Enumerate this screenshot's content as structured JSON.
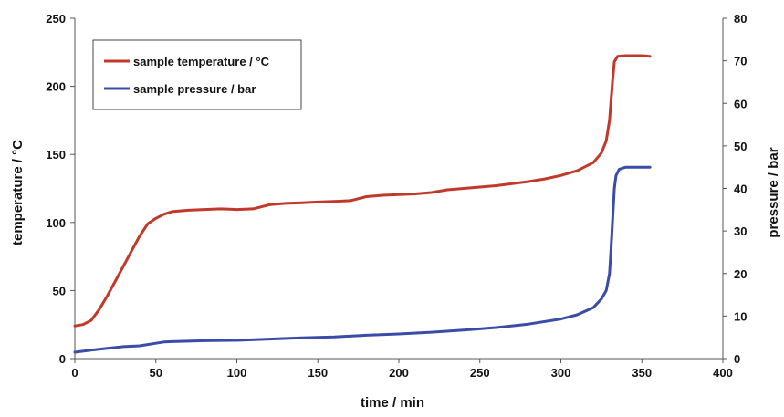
{
  "chart_data": {
    "type": "line",
    "title": "",
    "xlabel": "time / min",
    "ylabel": "temperature / °C",
    "y2label": "pressure / bar",
    "xlim": [
      0,
      400
    ],
    "ylim": [
      0,
      250
    ],
    "y2lim": [
      0,
      80
    ],
    "x_ticks": [
      "0",
      "50",
      "100",
      "150",
      "200",
      "250",
      "300",
      "350",
      "400"
    ],
    "y_ticks": [
      "0",
      "50",
      "100",
      "150",
      "200",
      "250"
    ],
    "y2_ticks": [
      "0",
      "10",
      "20",
      "30",
      "40",
      "50",
      "60",
      "70",
      "80"
    ],
    "grid": false,
    "legend_position": "top-left",
    "series": [
      {
        "name": "sample temperature / °C",
        "axis": "left",
        "color": "#c0392b",
        "points": [
          [
            0,
            24
          ],
          [
            5,
            25
          ],
          [
            10,
            28
          ],
          [
            15,
            36
          ],
          [
            20,
            46
          ],
          [
            25,
            57
          ],
          [
            30,
            68
          ],
          [
            35,
            79
          ],
          [
            40,
            90
          ],
          [
            45,
            99
          ],
          [
            50,
            103
          ],
          [
            55,
            106
          ],
          [
            60,
            108
          ],
          [
            70,
            109
          ],
          [
            80,
            109.5
          ],
          [
            90,
            110
          ],
          [
            100,
            109.5
          ],
          [
            110,
            110
          ],
          [
            120,
            113
          ],
          [
            130,
            114
          ],
          [
            140,
            114.5
          ],
          [
            150,
            115
          ],
          [
            160,
            115.5
          ],
          [
            170,
            116
          ],
          [
            180,
            119
          ],
          [
            190,
            120
          ],
          [
            200,
            120.5
          ],
          [
            210,
            121
          ],
          [
            220,
            122
          ],
          [
            230,
            124
          ],
          [
            240,
            125
          ],
          [
            250,
            126
          ],
          [
            260,
            127
          ],
          [
            270,
            128.5
          ],
          [
            280,
            130
          ],
          [
            290,
            132
          ],
          [
            300,
            134.5
          ],
          [
            310,
            138
          ],
          [
            320,
            144
          ],
          [
            325,
            151
          ],
          [
            328,
            160
          ],
          [
            330,
            175
          ],
          [
            331,
            190
          ],
          [
            332,
            205
          ],
          [
            333,
            218
          ],
          [
            335,
            222
          ],
          [
            340,
            222.5
          ],
          [
            350,
            222.5
          ],
          [
            355,
            222
          ]
        ]
      },
      {
        "name": "sample pressure / bar",
        "axis": "right",
        "color": "#3b4ba8",
        "points": [
          [
            0,
            1.5
          ],
          [
            10,
            2
          ],
          [
            20,
            2.4
          ],
          [
            30,
            2.8
          ],
          [
            40,
            3.0
          ],
          [
            50,
            3.6
          ],
          [
            55,
            3.9
          ],
          [
            60,
            4.0
          ],
          [
            80,
            4.2
          ],
          [
            100,
            4.3
          ],
          [
            120,
            4.6
          ],
          [
            140,
            4.9
          ],
          [
            160,
            5.1
          ],
          [
            180,
            5.5
          ],
          [
            200,
            5.8
          ],
          [
            220,
            6.2
          ],
          [
            240,
            6.7
          ],
          [
            260,
            7.3
          ],
          [
            280,
            8.1
          ],
          [
            300,
            9.3
          ],
          [
            310,
            10.3
          ],
          [
            320,
            12
          ],
          [
            325,
            14
          ],
          [
            328,
            16
          ],
          [
            330,
            20
          ],
          [
            331,
            26
          ],
          [
            332,
            33
          ],
          [
            333,
            40
          ],
          [
            334,
            43
          ],
          [
            336,
            44.5
          ],
          [
            340,
            45
          ],
          [
            350,
            45
          ],
          [
            355,
            45
          ]
        ]
      }
    ]
  }
}
